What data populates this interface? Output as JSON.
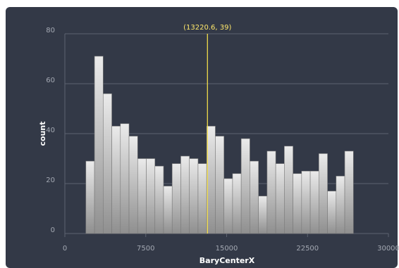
{
  "chart_data": {
    "type": "bar",
    "xlabel": "BaryCenterX",
    "ylabel": "count",
    "xlim": [
      0,
      30000
    ],
    "ylim": [
      0,
      80
    ],
    "x_ticks": [
      0,
      7500,
      15000,
      22500,
      30000
    ],
    "x_tick_labels": [
      "0",
      "7500",
      "15000",
      "22500",
      "30000"
    ],
    "y_ticks": [
      0,
      20,
      40,
      60,
      80
    ],
    "y_tick_labels": [
      "0",
      "20",
      "40",
      "60",
      "80"
    ],
    "grid": true,
    "bin_start": 1950,
    "bin_width": 800,
    "values": [
      29,
      71,
      56,
      43,
      44,
      39,
      30,
      30,
      27,
      19,
      28,
      31,
      30,
      28,
      43,
      39,
      22,
      24,
      38,
      29,
      15,
      33,
      28,
      35,
      24,
      25,
      25,
      32,
      17,
      23,
      33
    ],
    "crosshair": {
      "x": 13220.6,
      "y": 39,
      "label": "(13220.6, 39)"
    }
  },
  "colors": {
    "background": "#333947",
    "grid": "#5d6270",
    "bar_top": "#ebebeb",
    "bar_bottom": "#8f8f8f",
    "bar_stroke": "#7a7a7a",
    "crosshair": "#ffe84a"
  }
}
